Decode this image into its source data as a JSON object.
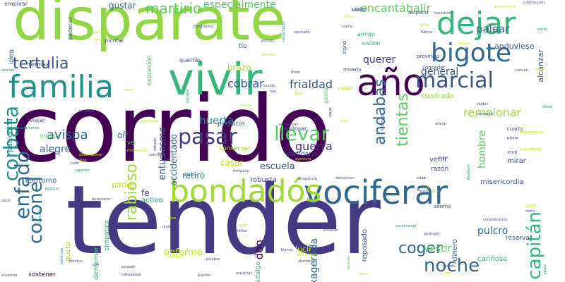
{
  "palette": {
    "dark": "#440154",
    "indigo": "#443983",
    "blue": "#31688e",
    "teal": "#21918c",
    "green": "#35b779",
    "lime": "#90d743",
    "yellow": "#c8e020"
  },
  "words": [
    {
      "text": "corrido",
      "color": "#440154",
      "weight": 1.0
    },
    {
      "text": "tender",
      "color": "#443983",
      "weight": 0.92
    },
    {
      "text": "disparate",
      "color": "#90d743",
      "weight": 0.82
    },
    {
      "text": "vivir",
      "color": "#35b779",
      "weight": 0.6
    },
    {
      "text": "vociferar",
      "color": "#31688e",
      "weight": 0.5
    },
    {
      "text": "bondadós",
      "color": "#a0da39",
      "weight": 0.48
    },
    {
      "text": "año",
      "color": "#440154",
      "weight": 0.46
    },
    {
      "text": "dejar",
      "color": "#35b779",
      "weight": 0.42
    },
    {
      "text": "familia",
      "color": "#21918c",
      "weight": 0.4
    },
    {
      "text": "bigote",
      "color": "#31688e",
      "weight": 0.36
    },
    {
      "text": "marcial",
      "color": "#3b528b",
      "weight": 0.3
    },
    {
      "text": "corbata",
      "color": "#21918c",
      "weight": 0.28
    },
    {
      "text": "enfado",
      "color": "#31688e",
      "weight": 0.27
    },
    {
      "text": "coronel",
      "color": "#31688e",
      "weight": 0.26
    },
    {
      "text": "capitán",
      "color": "#35b779",
      "weight": 0.27
    },
    {
      "text": "noche",
      "color": "#31688e",
      "weight": 0.25
    },
    {
      "text": "pasar",
      "color": "#443983",
      "weight": 0.26
    },
    {
      "text": "llevar",
      "color": "#5ec962",
      "weight": 0.24
    },
    {
      "text": "andabas",
      "color": "#31688e",
      "weight": 0.22
    },
    {
      "text": "tientas",
      "color": "#5ec962",
      "weight": 0.22
    },
    {
      "text": "coger",
      "color": "#31688e",
      "weight": 0.22
    },
    {
      "text": "rabioso",
      "color": "#a0da39",
      "weight": 0.22
    },
    {
      "text": "tertulia",
      "color": "#3b528b",
      "weight": 0.22
    },
    {
      "text": "martirio",
      "color": "#5ec962",
      "weight": 0.2
    },
    {
      "text": "avispa",
      "color": "#31688e",
      "weight": 0.18
    },
    {
      "text": "guerra",
      "color": "#443983",
      "weight": 0.16
    },
    {
      "text": "remolonar",
      "color": "#a0da39",
      "weight": 0.16
    },
    {
      "text": "frialdad",
      "color": "#3b528b",
      "weight": 0.16
    },
    {
      "text": "cobrar",
      "color": "#3b528b",
      "weight": 0.16
    },
    {
      "text": "encantábalir",
      "color": "#5ec962",
      "weight": 0.16
    },
    {
      "text": "especialmente",
      "color": "#5ec962",
      "weight": 0.14
    },
    {
      "text": "palear",
      "color": "#31688e",
      "weight": 0.15
    },
    {
      "text": "huerta",
      "color": "#21918c",
      "weight": 0.15
    },
    {
      "text": "alegre",
      "color": "#31688e",
      "weight": 0.14
    },
    {
      "text": "escuela",
      "color": "#3b528b",
      "weight": 0.13
    },
    {
      "text": "don",
      "color": "#440154",
      "weight": 0.15
    },
    {
      "text": "enfermo",
      "color": "#c8e020",
      "weight": 0.13
    },
    {
      "text": "exagerada",
      "color": "#31688e",
      "weight": 0.14
    },
    {
      "text": "vestir",
      "color": "#5ec962",
      "weight": 0.14
    },
    {
      "text": "pulcro",
      "color": "#31688e",
      "weight": 0.14
    },
    {
      "text": "hombre",
      "color": "#5ec962",
      "weight": 0.14
    },
    {
      "text": "entusiasmo",
      "color": "#3b528b",
      "weight": 0.13
    },
    {
      "text": "accidentado",
      "color": "#31688e",
      "weight": 0.12
    },
    {
      "text": "querer",
      "color": "#443983",
      "weight": 0.14
    },
    {
      "text": "general",
      "color": "#3b528b",
      "weight": 0.14
    },
    {
      "text": "anduviese",
      "color": "#3b528b",
      "weight": 0.11
    },
    {
      "text": "alcanzar",
      "color": "#3b528b",
      "weight": 0.11
    },
    {
      "text": "gustar",
      "color": "#31688e",
      "weight": 0.12
    },
    {
      "text": "brazo",
      "color": "#a0da39",
      "weight": 0.12
    },
    {
      "text": "casar",
      "color": "#c8e020",
      "weight": 0.12
    },
    {
      "text": "oír",
      "color": "#31688e",
      "weight": 0.12
    },
    {
      "text": "padre",
      "color": "#c8e020",
      "weight": 0.11
    },
    {
      "text": "contorno",
      "color": "#31688e",
      "weight": 0.1
    },
    {
      "text": "fe",
      "color": "#3b528b",
      "weight": 0.12
    },
    {
      "text": "activo",
      "color": "#21918c",
      "weight": 0.1
    },
    {
      "text": "retiro",
      "color": "#21918c",
      "weight": 0.12
    },
    {
      "text": "robusta",
      "color": "#3b528b",
      "weight": 0.1
    },
    {
      "text": "misericordia",
      "color": "#3b528b",
      "weight": 0.1
    },
    {
      "text": "dinero",
      "color": "#31688e",
      "weight": 0.1
    },
    {
      "text": "lucir",
      "color": "#c8e020",
      "weight": 0.11
    },
    {
      "text": "reposado",
      "color": "#3b528b",
      "weight": 0.1
    },
    {
      "text": "mirar",
      "color": "#3b528b",
      "weight": 0.1
    },
    {
      "text": "venir",
      "color": "#3b528b",
      "weight": 0.1
    },
    {
      "text": "razón",
      "color": "#3b528b",
      "weight": 0.09
    },
    {
      "text": "cuadrado",
      "color": "#a0da39",
      "weight": 0.1
    },
    {
      "text": "cariñoso",
      "color": "#35b779",
      "weight": 0.1
    },
    {
      "text": "reservar",
      "color": "#31688e",
      "weight": 0.09
    },
    {
      "text": "gusto",
      "color": "#a0da39",
      "weight": 0.1
    },
    {
      "text": "derramar",
      "color": "#35b779",
      "weight": 0.1
    },
    {
      "text": "simpático",
      "color": "#35b779",
      "weight": 0.09
    },
    {
      "text": "sostener",
      "color": "#440154",
      "weight": 0.09
    },
    {
      "text": "hidalgo",
      "color": "#35b779",
      "weight": 0.09
    },
    {
      "text": "padecer",
      "color": "#3b528b",
      "weight": 0.08
    },
    {
      "text": "emplear",
      "color": "#3b528b",
      "weight": 0.08
    },
    {
      "text": "idea",
      "color": "#31688e",
      "weight": 0.1
    },
    {
      "text": "remisa",
      "color": "#3b528b",
      "weight": 0.09
    },
    {
      "text": "paciencia",
      "color": "#21918c",
      "weight": 0.1
    },
    {
      "text": "perjuicio",
      "color": "#31688e",
      "weight": 0.09
    },
    {
      "text": "partidario",
      "color": "#3b528b",
      "weight": 0.09
    },
    {
      "text": "endosar",
      "color": "#3b528b",
      "weight": 0.08
    },
    {
      "text": "conservar",
      "color": "#a0da39",
      "weight": 0.09
    },
    {
      "text": "viajar",
      "color": "#3b528b",
      "weight": 0.08
    },
    {
      "text": "gruesa",
      "color": "#5ec962",
      "weight": 0.08
    },
    {
      "text": "ver",
      "color": "#5ec962",
      "weight": 0.08
    },
    {
      "text": "querrás",
      "color": "#3b528b",
      "weight": 0.08
    },
    {
      "text": "expresión",
      "color": "#5ec962",
      "weight": 0.09
    },
    {
      "text": "picotar",
      "color": "#3b528b",
      "weight": 0.08
    },
    {
      "text": "olvidar",
      "color": "#35b779",
      "weight": 0.08
    },
    {
      "text": "amigo",
      "color": "#35b779",
      "weight": 0.08
    },
    {
      "text": "tío",
      "color": "#3b528b",
      "weight": 0.09
    },
    {
      "text": "viejo",
      "color": "#3b528b",
      "weight": 0.08
    },
    {
      "text": "respetar",
      "color": "#3b528b",
      "weight": 0.07
    },
    {
      "text": "provincia",
      "color": "#3b528b",
      "weight": 0.07
    },
    {
      "text": "miseria",
      "color": "#3b528b",
      "weight": 0.07
    },
    {
      "text": "conceder",
      "color": "#3b528b",
      "weight": 0.07
    },
    {
      "text": "callar",
      "color": "#c8e020",
      "weight": 0.08
    },
    {
      "text": "gente",
      "color": "#5ec962",
      "weight": 0.08
    },
    {
      "text": "ojo",
      "color": "#c8e020",
      "weight": 0.07
    },
    {
      "text": "cuarto",
      "color": "#3b528b",
      "weight": 0.07
    },
    {
      "text": "vivo",
      "color": "#3b528b",
      "weight": 0.07
    },
    {
      "text": "adorno",
      "color": "#3b528b",
      "weight": 0.07
    },
    {
      "text": "signo",
      "color": "#31688e",
      "weight": 0.07
    },
    {
      "text": "frase",
      "color": "#3b528b",
      "weight": 0.05
    },
    {
      "text": "sumamente",
      "color": "#21918c",
      "weight": 0.05
    },
    {
      "text": "apartado",
      "color": "#3b528b",
      "weight": 0.05
    },
    {
      "text": "continente",
      "color": "#c8e020",
      "weight": 0.05
    },
    {
      "text": "compasivo",
      "color": "#3b528b",
      "weight": 0.05
    },
    {
      "text": "supremo",
      "color": "#3b528b",
      "weight": 0.04
    },
    {
      "text": "único",
      "color": "#c8e020",
      "weight": 0.04
    },
    {
      "text": "sueña",
      "color": "#3b528b",
      "weight": 0.04
    },
    {
      "text": "esmero",
      "color": "#3b528b",
      "weight": 0.04
    },
    {
      "text": "llorar",
      "color": "#c8e020",
      "weight": 0.04
    },
    {
      "text": "persona",
      "color": "#c8e020",
      "weight": 0.04
    },
    {
      "text": "inquisición",
      "color": "#3b528b",
      "weight": 0.04
    },
    {
      "text": "gravemente",
      "color": "#c8e020",
      "weight": 0.04
    },
    {
      "text": "contribución",
      "color": "#3b528b",
      "weight": 0.04
    },
    {
      "text": "quitar",
      "color": "#c8e020",
      "weight": 0.04
    },
    {
      "text": "fuerza",
      "color": "#3b528b",
      "weight": 0.04
    },
    {
      "text": "escaso",
      "color": "#c8e020",
      "weight": 0.04
    },
    {
      "text": "verde",
      "color": "#21918c",
      "weight": 0.04
    },
    {
      "text": "servido",
      "color": "#21918c",
      "weight": 0.04
    },
    {
      "text": "barraca",
      "color": "#c8e020",
      "weight": 0.04
    },
    {
      "text": "mundo",
      "color": "#3b528b",
      "weight": 0.04
    },
    {
      "text": "isla",
      "color": "#3b528b",
      "weight": 0.04
    },
    {
      "text": "extraña",
      "color": "#21918c",
      "weight": 0.04
    },
    {
      "text": "natural",
      "color": "#3b528b",
      "weight": 0.04
    },
    {
      "text": "cruzar",
      "color": "#c8e020",
      "weight": 0.04
    },
    {
      "text": "onza",
      "color": "#c8e020",
      "weight": 0.04
    },
    {
      "text": "limpieza",
      "color": "#3b528b",
      "weight": 0.04
    },
    {
      "text": "llamar",
      "color": "#c8e020",
      "weight": 0.04
    },
    {
      "text": "atajar",
      "color": "#3b528b",
      "weight": 0.04
    },
    {
      "text": "traer",
      "color": "#c8e020",
      "weight": 0.04
    },
    {
      "text": "faldón",
      "color": "#3b528b",
      "weight": 0.04
    },
    {
      "text": "fiesta",
      "color": "#21918c",
      "weight": 0.04
    },
    {
      "text": "comadre",
      "color": "#3b528b",
      "weight": 0.04
    },
    {
      "text": "picaresca",
      "color": "#c8e020",
      "weight": 0.04
    },
    {
      "text": "sábado",
      "color": "#3b528b",
      "weight": 0.04
    },
    {
      "text": "embelecar",
      "color": "#3b528b",
      "weight": 0.04
    },
    {
      "text": "ordenado",
      "color": "#3b528b",
      "weight": 0.04
    },
    {
      "text": "alterar",
      "color": "#3b528b",
      "weight": 0.04
    },
    {
      "text": "descorazonar",
      "color": "#c8e020",
      "weight": 0.04
    },
    {
      "text": "desahogadamente",
      "color": "#21918c",
      "weight": 0.04
    },
    {
      "text": "miramiento",
      "color": "#c8e020",
      "weight": 0.04
    },
    {
      "text": "petrolero",
      "color": "#3b528b",
      "weight": 0.04
    },
    {
      "text": "desenfadado",
      "color": "#c8e020",
      "weight": 0.04
    },
    {
      "text": "aventura",
      "color": "#c8e020",
      "weight": 0.04
    },
    {
      "text": "mujer",
      "color": "#3b528b",
      "weight": 0.04
    },
    {
      "text": "pájaro",
      "color": "#3b528b",
      "weight": 0.04
    },
    {
      "text": "enguantado",
      "color": "#c8e020",
      "weight": 0.04
    },
    {
      "text": "calor",
      "color": "#3b528b",
      "weight": 0.04
    },
    {
      "text": "diño",
      "color": "#c8e020",
      "weight": 0.04
    },
    {
      "text": "superior",
      "color": "#21918c",
      "weight": 0.04
    },
    {
      "text": "ejército",
      "color": "#3b528b",
      "weight": 0.04
    },
    {
      "text": "individuo",
      "color": "#3b528b",
      "weight": 0.04
    },
    {
      "text": "política",
      "color": "#21918c",
      "weight": 0.04
    },
    {
      "text": "ferroviario",
      "color": "#3b528b",
      "weight": 0.04
    },
    {
      "text": "arrogancia",
      "color": "#3b528b",
      "weight": 0.04
    },
    {
      "text": "denunciar",
      "color": "#3b528b",
      "weight": 0.04
    },
    {
      "text": "edad",
      "color": "#3b528b",
      "weight": 0.04
    },
    {
      "text": "disolvent",
      "color": "#21918c",
      "weight": 0.04
    },
    {
      "text": "decir",
      "color": "#3b528b",
      "weight": 0.04
    },
    {
      "text": "casquilla",
      "color": "#21918c",
      "weight": 0.04
    },
    {
      "text": "cosa",
      "color": "#c8e020",
      "weight": 0.04
    },
    {
      "text": "ojalar",
      "color": "#3b528b",
      "weight": 0.04
    },
    {
      "text": "consideración",
      "color": "#3b528b",
      "weight": 0.04
    },
    {
      "text": "escamotear",
      "color": "#21918c",
      "weight": 0.04
    },
    {
      "text": "postrado",
      "color": "#3b528b",
      "weight": 0.04
    },
    {
      "text": "monte",
      "color": "#c8e020",
      "weight": 0.04
    },
    {
      "text": "renta",
      "color": "#3b528b",
      "weight": 0.04
    },
    {
      "text": "amor",
      "color": "#c8e020",
      "weight": 0.04
    },
    {
      "text": "militar",
      "color": "#3b528b",
      "weight": 0.04
    },
    {
      "text": "enseñar",
      "color": "#3b528b",
      "weight": 0.04
    },
    {
      "text": "barbaridad",
      "color": "#c8e020",
      "weight": 0.04
    },
    {
      "text": "abandonar",
      "color": "#3b528b",
      "weight": 0.04
    },
    {
      "text": "blanco",
      "color": "#3b528b",
      "weight": 0.04
    },
    {
      "text": "esfuerzo",
      "color": "#c8e020",
      "weight": 0.04
    },
    {
      "text": "benévola",
      "color": "#21918c",
      "weight": 0.04
    },
    {
      "text": "sonrisa",
      "color": "#3b528b",
      "weight": 0.04
    },
    {
      "text": "salir",
      "color": "#3b528b",
      "weight": 0.04
    },
    {
      "text": "corazón",
      "color": "#3b528b",
      "weight": 0.04
    },
    {
      "text": "refléjabase",
      "color": "#3b528b",
      "weight": 0.04
    },
    {
      "text": "plácido",
      "color": "#3b528b",
      "weight": 0.04
    },
    {
      "text": "escuchar",
      "color": "#3b528b",
      "weight": 0.04
    },
    {
      "text": "robar",
      "color": "#c8e020",
      "weight": 0.04
    },
    {
      "text": "lavado",
      "color": "#3b528b",
      "weight": 0.04
    },
    {
      "text": "loco",
      "color": "#c8e020",
      "weight": 0.04
    },
    {
      "text": "apuro",
      "color": "#21918c",
      "weight": 0.04
    },
    {
      "text": "ausencia",
      "color": "#3b528b",
      "weight": 0.04
    },
    {
      "text": "levantar",
      "color": "#5ec962",
      "weight": 0.05
    },
    {
      "text": "bajo",
      "color": "#3b528b",
      "weight": 0.04
    },
    {
      "text": "mes",
      "color": "#c8e020",
      "weight": 0.04
    },
    {
      "text": "él",
      "color": "#3b528b",
      "weight": 0.04
    },
    {
      "text": "fila",
      "color": "#c8e020",
      "weight": 0.04
    },
    {
      "text": "palabra",
      "color": "#3b528b",
      "weight": 0.05
    }
  ]
}
